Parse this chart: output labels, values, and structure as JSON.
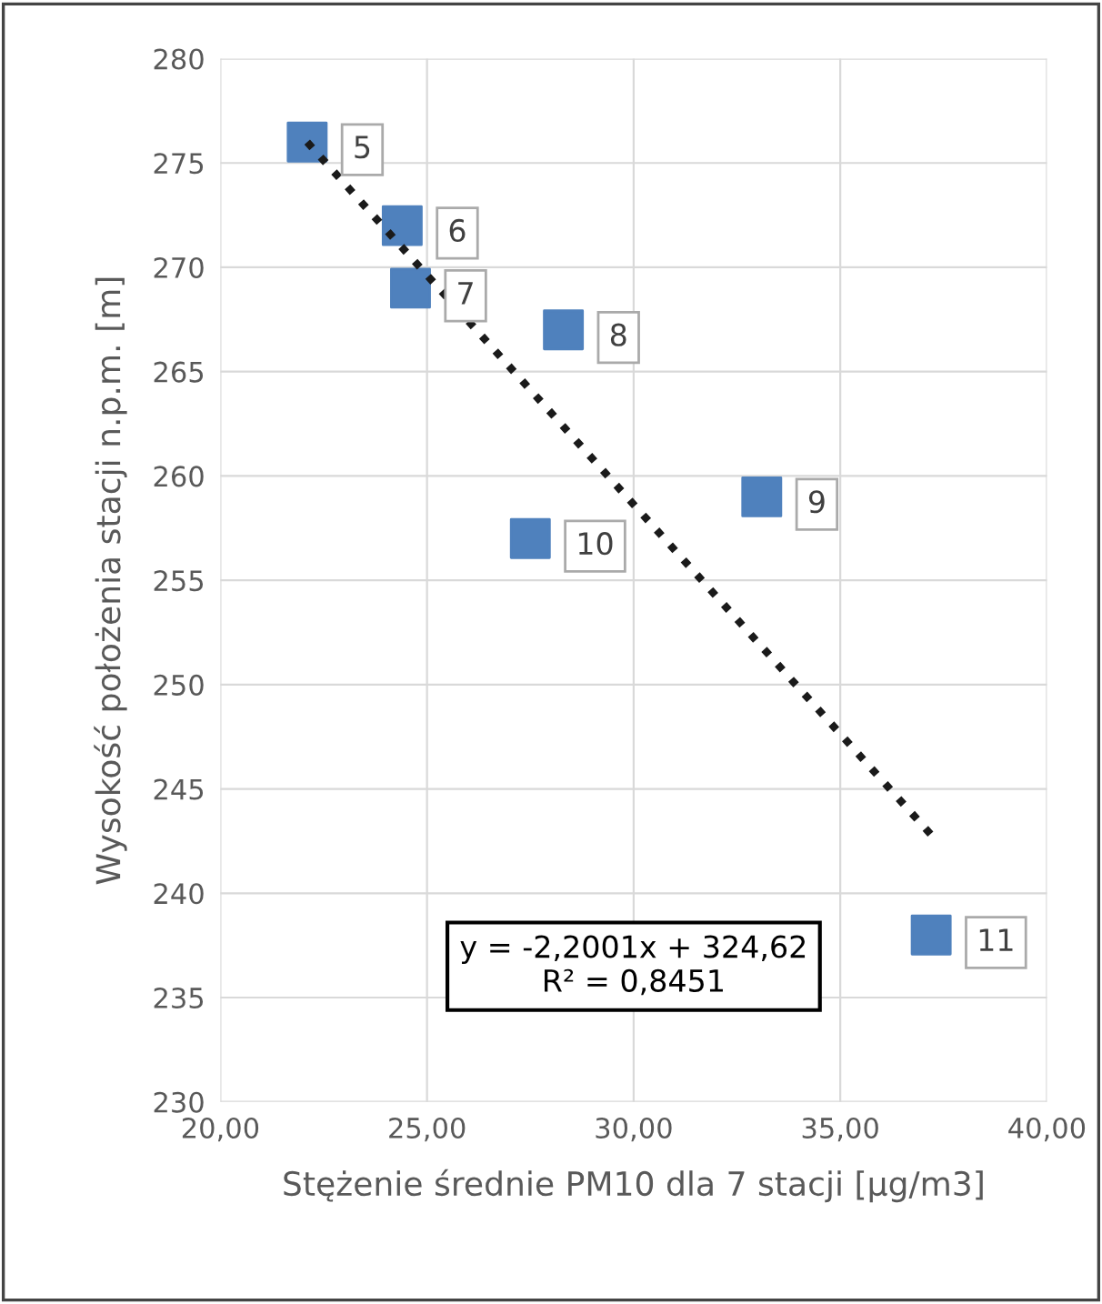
{
  "chart_data": {
    "type": "scatter",
    "xlabel": "Stężenie średnie PM10 dla 7 stacji [µg/m3]",
    "ylabel": "Wysokość położenia stacji n.p.m. [m]",
    "series": [
      {
        "color": "#4f81bd",
        "marker": "square",
        "x": [
          22.1,
          24.4,
          24.6,
          28.3,
          33.1,
          27.5,
          37.2
        ],
        "values": [
          276,
          272,
          269,
          267,
          259,
          257,
          238
        ]
      },
      {
        "type": "line",
        "color": "#1a1a1a",
        "line_style": "dotted",
        "marker": "none",
        "x": [
          22.1,
          37.2
        ],
        "values": [
          276.0,
          242.8
        ]
      }
    ],
    "annotations": [
      {
        "text": "5",
        "x": 22.1,
        "y": 276
      },
      {
        "text": "6",
        "x": 24.4,
        "y": 272
      },
      {
        "text": "7",
        "x": 24.6,
        "y": 269
      },
      {
        "text": "8",
        "x": 28.3,
        "y": 267
      },
      {
        "text": "9",
        "x": 33.1,
        "y": 259
      },
      {
        "text": "10",
        "x": 27.5,
        "y": 257
      },
      {
        "text": "11",
        "x": 37.2,
        "y": 238
      },
      "y = -2,2001x + 324,62\nR² = 0,8451"
    ],
    "xlim": [
      20,
      40
    ],
    "xticks": [
      {
        "value": 20,
        "label": "20,00"
      },
      {
        "value": 25,
        "label": "25,00"
      },
      {
        "value": 30,
        "label": "30,00"
      },
      {
        "value": 35,
        "label": "35,00"
      },
      {
        "value": 40,
        "label": "40,00"
      }
    ],
    "ylim": [
      230,
      280
    ],
    "yticks": [
      230,
      235,
      240,
      245,
      250,
      255,
      260,
      265,
      270,
      275,
      280
    ],
    "grid": true
  }
}
